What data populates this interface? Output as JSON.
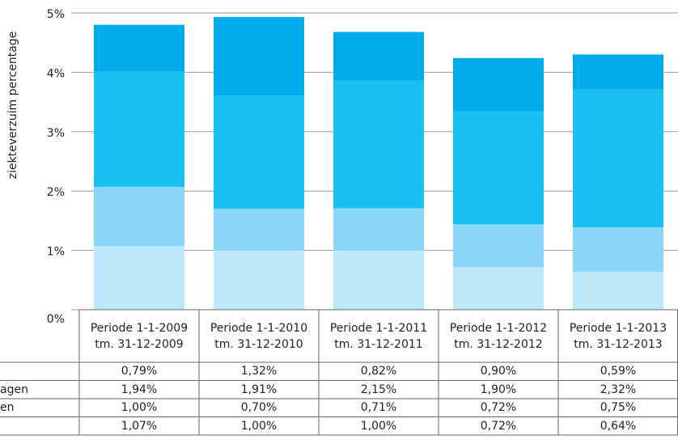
{
  "chart_data": {
    "type": "bar",
    "stacked": true,
    "y_label": "ziekteverzuim percentage",
    "categories": [
      "Periode 1-1-2009\ntm. 31-12-2009",
      "Periode 1-1-2010\ntm. 31-12-2010",
      "Periode 1-1-2011\ntm. 31-12-2011",
      "Periode 1-1-2012\ntm. 31-12-2012",
      "Periode 1-1-2013\ntm. 31-12-2013"
    ],
    "series": [
      {
        "name": null,
        "color": "#00aaeb",
        "values": [
          0.79,
          1.32,
          0.82,
          0.9,
          0.59
        ],
        "value_labels": [
          "0,79%",
          "1,32%",
          "0,82%",
          "0,90%",
          "0,59%"
        ]
      },
      {
        "name": "agen",
        "color": "#17c0f0",
        "values": [
          1.94,
          1.91,
          2.15,
          1.9,
          2.32
        ],
        "value_labels": [
          "1,94%",
          "1,91%",
          "2,15%",
          "1,90%",
          "2,32%"
        ]
      },
      {
        "name": "en",
        "color": "#8ad6f7",
        "values": [
          1.0,
          0.7,
          0.71,
          0.72,
          0.75
        ],
        "value_labels": [
          "1,00%",
          "0,70%",
          "0,71%",
          "0,72%",
          "0,75%"
        ]
      },
      {
        "name": null,
        "color": "#bde8fa",
        "values": [
          1.07,
          1.0,
          1.0,
          0.72,
          0.64
        ],
        "value_labels": [
          "1,07%",
          "1,00%",
          "1,00%",
          "0,72%",
          "0,64%"
        ]
      }
    ],
    "ylim": [
      0,
      5
    ],
    "yticks": [
      {
        "value": 0,
        "label": "0%"
      },
      {
        "value": 1,
        "label": "1%"
      },
      {
        "value": 2,
        "label": "2%"
      },
      {
        "value": 3,
        "label": "3%"
      },
      {
        "value": 4,
        "label": "4%"
      },
      {
        "value": 5,
        "label": "5%"
      }
    ],
    "grid": true
  }
}
